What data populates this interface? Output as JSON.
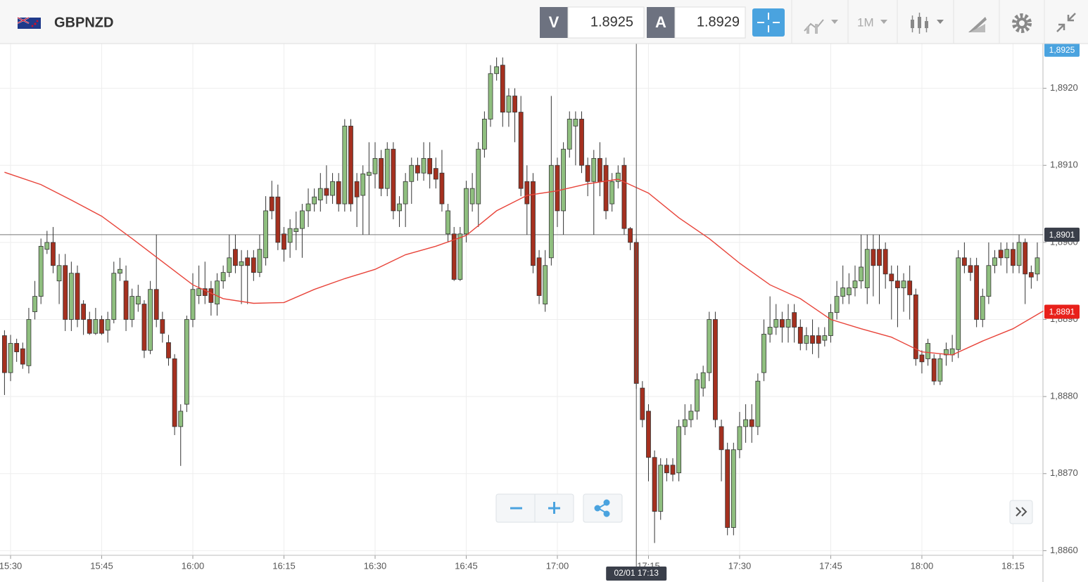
{
  "toolbar": {
    "symbol": "GBPNZD",
    "bid_label": "V",
    "bid": 1.8925,
    "ask_label": "A",
    "ask": 1.8929,
    "timeframe": "1M"
  },
  "chart_data": {
    "type": "candlestick",
    "up_color": "#8fbf7f",
    "down_color": "#a5301f",
    "x": [
      929,
      930,
      931,
      932,
      933,
      934,
      935,
      936,
      937,
      938,
      939,
      940,
      941,
      942,
      943,
      944,
      945,
      946,
      947,
      948,
      949,
      950,
      951,
      952,
      953,
      954,
      955,
      956,
      957,
      958,
      959,
      960,
      961,
      962,
      963,
      964,
      965,
      966,
      967,
      968,
      969,
      970,
      971,
      972,
      973,
      974,
      975,
      976,
      977,
      978,
      979,
      980,
      981,
      982,
      983,
      984,
      985,
      986,
      987,
      988,
      989,
      990,
      991,
      992,
      993,
      994,
      995,
      996,
      997,
      998,
      999,
      1000,
      1001,
      1002,
      1003,
      1004,
      1005,
      1006,
      1007,
      1008,
      1009,
      1010,
      1011,
      1012,
      1013,
      1014,
      1015,
      1016,
      1017,
      1018,
      1019,
      1020,
      1021,
      1022,
      1023,
      1024,
      1025,
      1026,
      1027,
      1028,
      1029,
      1030,
      1031,
      1032,
      1033,
      1034,
      1035,
      1036,
      1037,
      1038,
      1039,
      1040,
      1041,
      1042,
      1043,
      1044,
      1045,
      1046,
      1047,
      1048,
      1049,
      1050,
      1051,
      1052,
      1053,
      1054,
      1055,
      1056,
      1057,
      1058,
      1059,
      1060,
      1061,
      1062,
      1063,
      1064,
      1065,
      1066,
      1067,
      1068,
      1069,
      1070,
      1071,
      1072,
      1073,
      1074,
      1075,
      1076,
      1077,
      1078,
      1079,
      1080,
      1081,
      1082,
      1083,
      1084,
      1085,
      1086,
      1087,
      1088,
      1089,
      1090,
      1091,
      1092,
      1093,
      1094,
      1095,
      1096,
      1097,
      1098,
      1099
    ],
    "open": [
      1.88879,
      1.88831,
      1.88869,
      1.88862,
      1.8884,
      1.8891,
      1.8893,
      1.88991,
      1.89,
      1.8895,
      1.8897,
      1.889,
      1.8896,
      1.8892,
      1.889,
      1.88882,
      1.889,
      1.88886,
      1.889,
      1.8896,
      1.8895,
      1.889,
      1.8892,
      1.8892,
      1.8886,
      1.88939,
      1.889,
      1.8887,
      1.88849,
      1.88761,
      1.8879,
      1.889,
      1.88931,
      1.8894,
      1.8894,
      1.8892,
      1.8895,
      1.88961,
      1.88991,
      1.8897,
      1.8898,
      1.8898,
      1.88961,
      1.8898,
      1.89059,
      1.89059,
      1.89011,
      1.89,
      1.89014,
      1.89018,
      1.89041,
      1.8905,
      1.89055,
      1.8907,
      1.89061,
      1.89079,
      1.8905,
      1.89151,
      1.89079,
      1.89061,
      1.89087,
      1.89089,
      1.89109,
      1.8907,
      1.89121,
      1.89041,
      1.8905,
      1.89079,
      1.891,
      1.8909,
      1.89109,
      1.89096,
      1.8909,
      1.89011,
      1.89011,
      1.88952,
      1.89011,
      1.8905,
      1.8905,
      1.89121,
      1.8916,
      1.89219,
      1.8923,
      1.89169,
      1.8919,
      1.89169,
      1.89079,
      1.89079,
      1.8898,
      1.8892,
      1.8898,
      1.891,
      1.89041,
      1.89121,
      1.89151,
      1.8916,
      1.891,
      1.89079,
      1.89109,
      1.891,
      1.8905,
      1.89079,
      1.891,
      1.89018,
      1.89,
      1.88811,
      1.88781,
      1.88721,
      1.88651,
      1.88711,
      1.88711,
      1.88701,
      1.88761,
      1.8877,
      1.88781,
      1.88811,
      1.88831,
      1.889,
      1.88761,
      1.88731,
      1.8863,
      1.88731,
      1.88761,
      1.8877,
      1.88761,
      1.88831,
      1.88881,
      1.8889,
      1.889,
      1.8889,
      1.88909,
      1.8889,
      1.88869,
      1.88879,
      1.88879,
      1.88873,
      1.88879,
      1.88909,
      1.8893,
      1.88932,
      1.88941,
      1.8895,
      1.88941,
      1.88991,
      1.88991,
      1.88991,
      1.88959,
      1.8895,
      1.88941,
      1.8895,
      1.88932,
      1.88854,
      1.88849,
      1.88849,
      1.8882,
      1.88854,
      1.88854,
      1.88861,
      1.8898,
      1.8897,
      1.8897,
      1.889,
      1.8893,
      1.8897,
      1.8899,
      1.8898,
      1.88991,
      1.8897,
      1.89,
      1.88961,
      1.88959
    ],
    "high": [
      1.88886,
      1.8888,
      1.88875,
      1.8887,
      1.88915,
      1.8895,
      1.89005,
      1.89015,
      1.8902,
      1.88985,
      1.88985,
      1.88975,
      1.8897,
      1.88925,
      1.8891,
      1.88915,
      1.88905,
      1.8891,
      1.88975,
      1.8898,
      1.8897,
      1.8894,
      1.88945,
      1.88925,
      1.8895,
      1.8901,
      1.8891,
      1.8888,
      1.88855,
      1.8879,
      1.88905,
      1.8896,
      1.8897,
      1.88975,
      1.8895,
      1.8896,
      1.8897,
      1.8901,
      1.8901,
      1.8899,
      1.8899,
      1.8899,
      1.8901,
      1.8906,
      1.8908,
      1.89075,
      1.8902,
      1.8903,
      1.8904,
      1.8905,
      1.8907,
      1.8907,
      1.8909,
      1.891,
      1.8909,
      1.8909,
      1.8916,
      1.8916,
      1.8909,
      1.891,
      1.8913,
      1.8913,
      1.8912,
      1.8913,
      1.8913,
      1.8906,
      1.8909,
      1.8911,
      1.8911,
      1.8913,
      1.8913,
      1.8911,
      1.8912,
      1.8905,
      1.8902,
      1.8902,
      1.8908,
      1.8909,
      1.8913,
      1.8917,
      1.8923,
      1.8924,
      1.8924,
      1.892,
      1.892,
      1.8919,
      1.891,
      1.8909,
      1.8899,
      1.8899,
      1.8919,
      1.8911,
      1.8913,
      1.8917,
      1.8917,
      1.8917,
      1.8911,
      1.8912,
      1.8913,
      1.8911,
      1.8909,
      1.891,
      1.8911,
      1.8902,
      1.89005,
      1.8882,
      1.8879,
      1.8873,
      1.8872,
      1.8872,
      1.8872,
      1.8877,
      1.8879,
      1.8879,
      1.8883,
      1.8884,
      1.8891,
      1.8891,
      1.8877,
      1.8874,
      1.8874,
      1.8878,
      1.8879,
      1.8879,
      1.8883,
      1.889,
      1.8893,
      1.8892,
      1.8891,
      1.8892,
      1.8892,
      1.889,
      1.8889,
      1.889,
      1.8889,
      1.8889,
      1.8892,
      1.8895,
      1.8897,
      1.8896,
      1.8897,
      1.8901,
      1.8901,
      1.8901,
      1.8901,
      1.89,
      1.8897,
      1.8897,
      1.8896,
      1.8897,
      1.8894,
      1.8886,
      1.88875,
      1.88855,
      1.88855,
      1.8887,
      1.8888,
      1.8899,
      1.89,
      1.8898,
      1.8898,
      1.8894,
      1.89,
      1.8899,
      1.89,
      1.89,
      1.89,
      1.8901,
      1.89005,
      1.8897,
      1.89
    ],
    "low": [
      1.88802,
      1.8882,
      1.88845,
      1.88836,
      1.8883,
      1.889,
      1.8892,
      1.88985,
      1.8896,
      1.8892,
      1.88885,
      1.88885,
      1.8889,
      1.8888,
      1.8888,
      1.8888,
      1.8888,
      1.8887,
      1.88895,
      1.8895,
      1.88885,
      1.8889,
      1.8891,
      1.8885,
      1.88855,
      1.8889,
      1.8887,
      1.8884,
      1.8875,
      1.8871,
      1.8878,
      1.8889,
      1.8892,
      1.8892,
      1.88905,
      1.88905,
      1.8894,
      1.88955,
      1.8896,
      1.8892,
      1.8892,
      1.8895,
      1.88955,
      1.8897,
      1.8903,
      1.8899,
      1.88975,
      1.8898,
      1.8899,
      1.8898,
      1.8902,
      1.8904,
      1.8904,
      1.8905,
      1.8905,
      1.8904,
      1.8904,
      1.8904,
      1.8902,
      1.8901,
      1.8901,
      1.8907,
      1.8906,
      1.8906,
      1.8903,
      1.8902,
      1.8902,
      1.8905,
      1.8908,
      1.8908,
      1.8907,
      1.8907,
      1.8904,
      1.89,
      1.8895,
      1.8895,
      1.89,
      1.8904,
      1.8902,
      1.8911,
      1.8915,
      1.8921,
      1.8915,
      1.8915,
      1.8913,
      1.8906,
      1.8901,
      1.8896,
      1.8892,
      1.8891,
      1.8897,
      1.8902,
      1.8901,
      1.8911,
      1.891,
      1.8909,
      1.8906,
      1.8901,
      1.8906,
      1.8903,
      1.8904,
      1.8907,
      1.8901,
      1.8899,
      1.8881,
      1.8876,
      1.8869,
      1.8861,
      1.8864,
      1.8869,
      1.8869,
      1.8869,
      1.8875,
      1.8876,
      1.8877,
      1.888,
      1.8882,
      1.8876,
      1.8869,
      1.8862,
      1.8862,
      1.8872,
      1.8874,
      1.8874,
      1.8875,
      1.8882,
      1.8887,
      1.8888,
      1.8887,
      1.8887,
      1.8887,
      1.8886,
      1.8886,
      1.88855,
      1.8885,
      1.88865,
      1.8887,
      1.889,
      1.8892,
      1.8892,
      1.8893,
      1.8894,
      1.8892,
      1.8893,
      1.8892,
      1.8894,
      1.889,
      1.8889,
      1.8891,
      1.889,
      1.8884,
      1.8883,
      1.8884,
      1.88815,
      1.88815,
      1.8884,
      1.88845,
      1.8885,
      1.8896,
      1.8895,
      1.8889,
      1.8889,
      1.8892,
      1.8896,
      1.8897,
      1.8896,
      1.8896,
      1.8896,
      1.8892,
      1.8894,
      1.8895
    ],
    "close": [
      1.88831,
      1.88869,
      1.88858,
      1.88842,
      1.889,
      1.8893,
      1.88995,
      1.89,
      1.8897,
      1.8897,
      1.889,
      1.8896,
      1.889,
      1.889,
      1.88882,
      1.889,
      1.88882,
      1.889,
      1.8896,
      1.88965,
      1.889,
      1.8893,
      1.8893,
      1.8886,
      1.88939,
      1.889,
      1.88882,
      1.8885,
      1.88761,
      1.88781,
      1.889,
      1.88939,
      1.8894,
      1.88931,
      1.88922,
      1.8895,
      1.88961,
      1.8898,
      1.8897,
      1.88975,
      1.8897,
      1.88961,
      1.88991,
      1.89041,
      1.89041,
      1.89,
      1.88991,
      1.89018,
      1.89018,
      1.89041,
      1.8905,
      1.89059,
      1.8907,
      1.89061,
      1.89079,
      1.8905,
      1.89151,
      1.8905,
      1.89059,
      1.89089,
      1.89091,
      1.89109,
      1.8907,
      1.89121,
      1.89041,
      1.8905,
      1.89079,
      1.891,
      1.8909,
      1.89109,
      1.89089,
      1.89082,
      1.8905,
      1.89041,
      1.88952,
      1.89011,
      1.8907,
      1.8907,
      1.89121,
      1.8916,
      1.89219,
      1.89228,
      1.89169,
      1.8919,
      1.89169,
      1.8907,
      1.8905,
      1.8897,
      1.88931,
      1.8897,
      1.891,
      1.89041,
      1.89121,
      1.8916,
      1.8916,
      1.891,
      1.89079,
      1.89109,
      1.89079,
      1.89041,
      1.89079,
      1.8909,
      1.89018,
      1.89,
      1.88817,
      1.8877,
      1.88721,
      1.88651,
      1.88711,
      1.88701,
      1.88699,
      1.88761,
      1.8877,
      1.88781,
      1.88822,
      1.88831,
      1.889,
      1.8877,
      1.88731,
      1.8863,
      1.88731,
      1.88761,
      1.8877,
      1.88761,
      1.8882,
      1.88881,
      1.8889,
      1.889,
      1.8889,
      1.889,
      1.8889,
      1.88869,
      1.88879,
      1.88869,
      1.88869,
      1.88879,
      1.88909,
      1.8893,
      1.88941,
      1.88941,
      1.8895,
      1.88968,
      1.88991,
      1.8897,
      1.8897,
      1.88959,
      1.8895,
      1.88941,
      1.8895,
      1.88932,
      1.88849,
      1.88845,
      1.88869,
      1.8882,
      1.88849,
      1.88861,
      1.88862,
      1.8898,
      1.8897,
      1.88961,
      1.889,
      1.8893,
      1.8897,
      1.8898,
      1.8898,
      1.88991,
      1.8897,
      1.89,
      1.88959,
      1.88955,
      1.8898
    ],
    "moving_average": {
      "color": "#e8443a",
      "x": [
        929,
        935,
        940,
        945,
        950,
        955,
        960,
        965,
        970,
        975,
        980,
        985,
        990,
        995,
        1000,
        1005,
        1010,
        1015,
        1020,
        1025,
        1030,
        1035,
        1040,
        1045,
        1050,
        1055,
        1060,
        1065,
        1070,
        1075,
        1080,
        1085,
        1090,
        1095,
        1100
      ],
      "values": [
        1.89091,
        1.89075,
        1.89055,
        1.89034,
        1.89005,
        1.88975,
        1.88945,
        1.88927,
        1.88921,
        1.88922,
        1.88939,
        1.88953,
        1.88965,
        1.88984,
        1.88995,
        1.89009,
        1.89041,
        1.89061,
        1.89067,
        1.89076,
        1.89082,
        1.89064,
        1.89032,
        1.89005,
        1.88973,
        1.88945,
        1.88927,
        1.889,
        1.88888,
        1.88877,
        1.88858,
        1.88854,
        1.88872,
        1.88888,
        1.88911
      ]
    },
    "xlim": [
      928.26,
      1099.93
    ],
    "ylim": [
      1.88594,
      1.89258
    ],
    "xticks": [
      {
        "value": 930,
        "label": "15:30"
      },
      {
        "value": 945,
        "label": "15:45"
      },
      {
        "value": 960,
        "label": "16:00"
      },
      {
        "value": 975,
        "label": "16:15"
      },
      {
        "value": 990,
        "label": "16:30"
      },
      {
        "value": 1005,
        "label": "16:45"
      },
      {
        "value": 1020,
        "label": "17:00"
      },
      {
        "value": 1035,
        "label": "17:15"
      },
      {
        "value": 1050,
        "label": "17:30"
      },
      {
        "value": 1065,
        "label": "17:45"
      },
      {
        "value": 1080,
        "label": "18:00"
      },
      {
        "value": 1095,
        "label": "18:15"
      }
    ],
    "yticks": [
      {
        "value": 1.886,
        "label": "1,8860"
      },
      {
        "value": 1.887,
        "label": "1,8870"
      },
      {
        "value": 1.888,
        "label": "1,8880"
      },
      {
        "value": 1.889,
        "label": "1,8890"
      },
      {
        "value": 1.89,
        "label": "1,8900"
      },
      {
        "value": 1.891,
        "label": "1,8910"
      },
      {
        "value": 1.892,
        "label": "1,8920"
      }
    ],
    "grid": true,
    "price_labels": [
      {
        "value": 1.8925,
        "label": "1,8925",
        "color": "#4aa3df"
      },
      {
        "value": 1.8901,
        "label": "1,8901",
        "color": "#3a3f4a"
      },
      {
        "value": 1.8891,
        "label": "1,8891",
        "color": "#e8201a"
      }
    ],
    "crosshair": {
      "y": 1.8901,
      "x": 1033,
      "x_label": "02/01 17:13"
    }
  }
}
